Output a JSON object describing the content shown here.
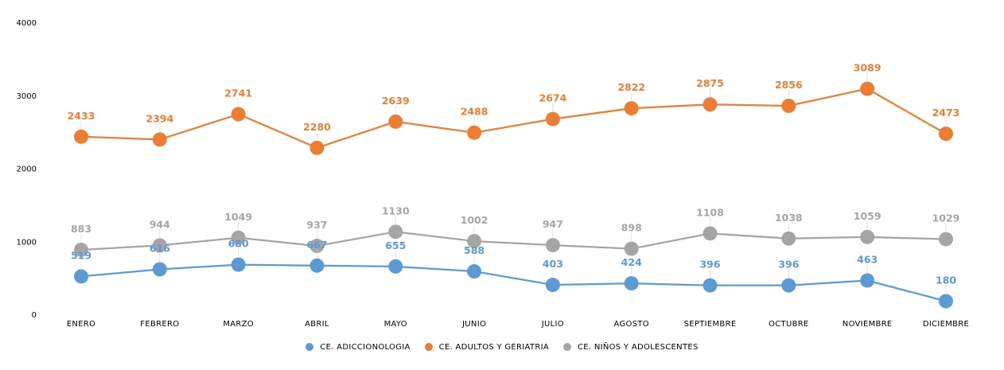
{
  "chart_data": {
    "type": "line",
    "title": "",
    "xlabel": "",
    "ylabel": "",
    "ylim": [
      0,
      4000
    ],
    "yticks": [
      "0",
      "1000",
      "2000",
      "3000",
      "4000"
    ],
    "grid": false,
    "legend_position": "bottom",
    "categories": [
      "ENERO",
      "FEBRERO",
      "MARZO",
      "ABRIL",
      "MAYO",
      "JUNIO",
      "JULIO",
      "AGOSTO",
      "SEPTIEMBRE",
      "OCTUBRE",
      "NOVIEMBRE",
      "DICIEMBRE"
    ],
    "series": [
      {
        "name": "CE. ADICCIONOLOGIA",
        "color": "#5B9BD5",
        "values": [
          519,
          616,
          680,
          667,
          655,
          588,
          403,
          424,
          396,
          396,
          463,
          180
        ]
      },
      {
        "name": "CE. ADULTOS Y GERIATRIA",
        "color": "#ED7D31",
        "values": [
          2433,
          2394,
          2741,
          2280,
          2639,
          2488,
          2674,
          2822,
          2875,
          2856,
          3089,
          2473
        ]
      },
      {
        "name": "CE. NIÑOS Y ADOLESCENTES",
        "color": "#A5A5A5",
        "values": [
          883,
          944,
          1049,
          937,
          1130,
          1002,
          947,
          898,
          1108,
          1038,
          1059,
          1029
        ]
      }
    ]
  }
}
